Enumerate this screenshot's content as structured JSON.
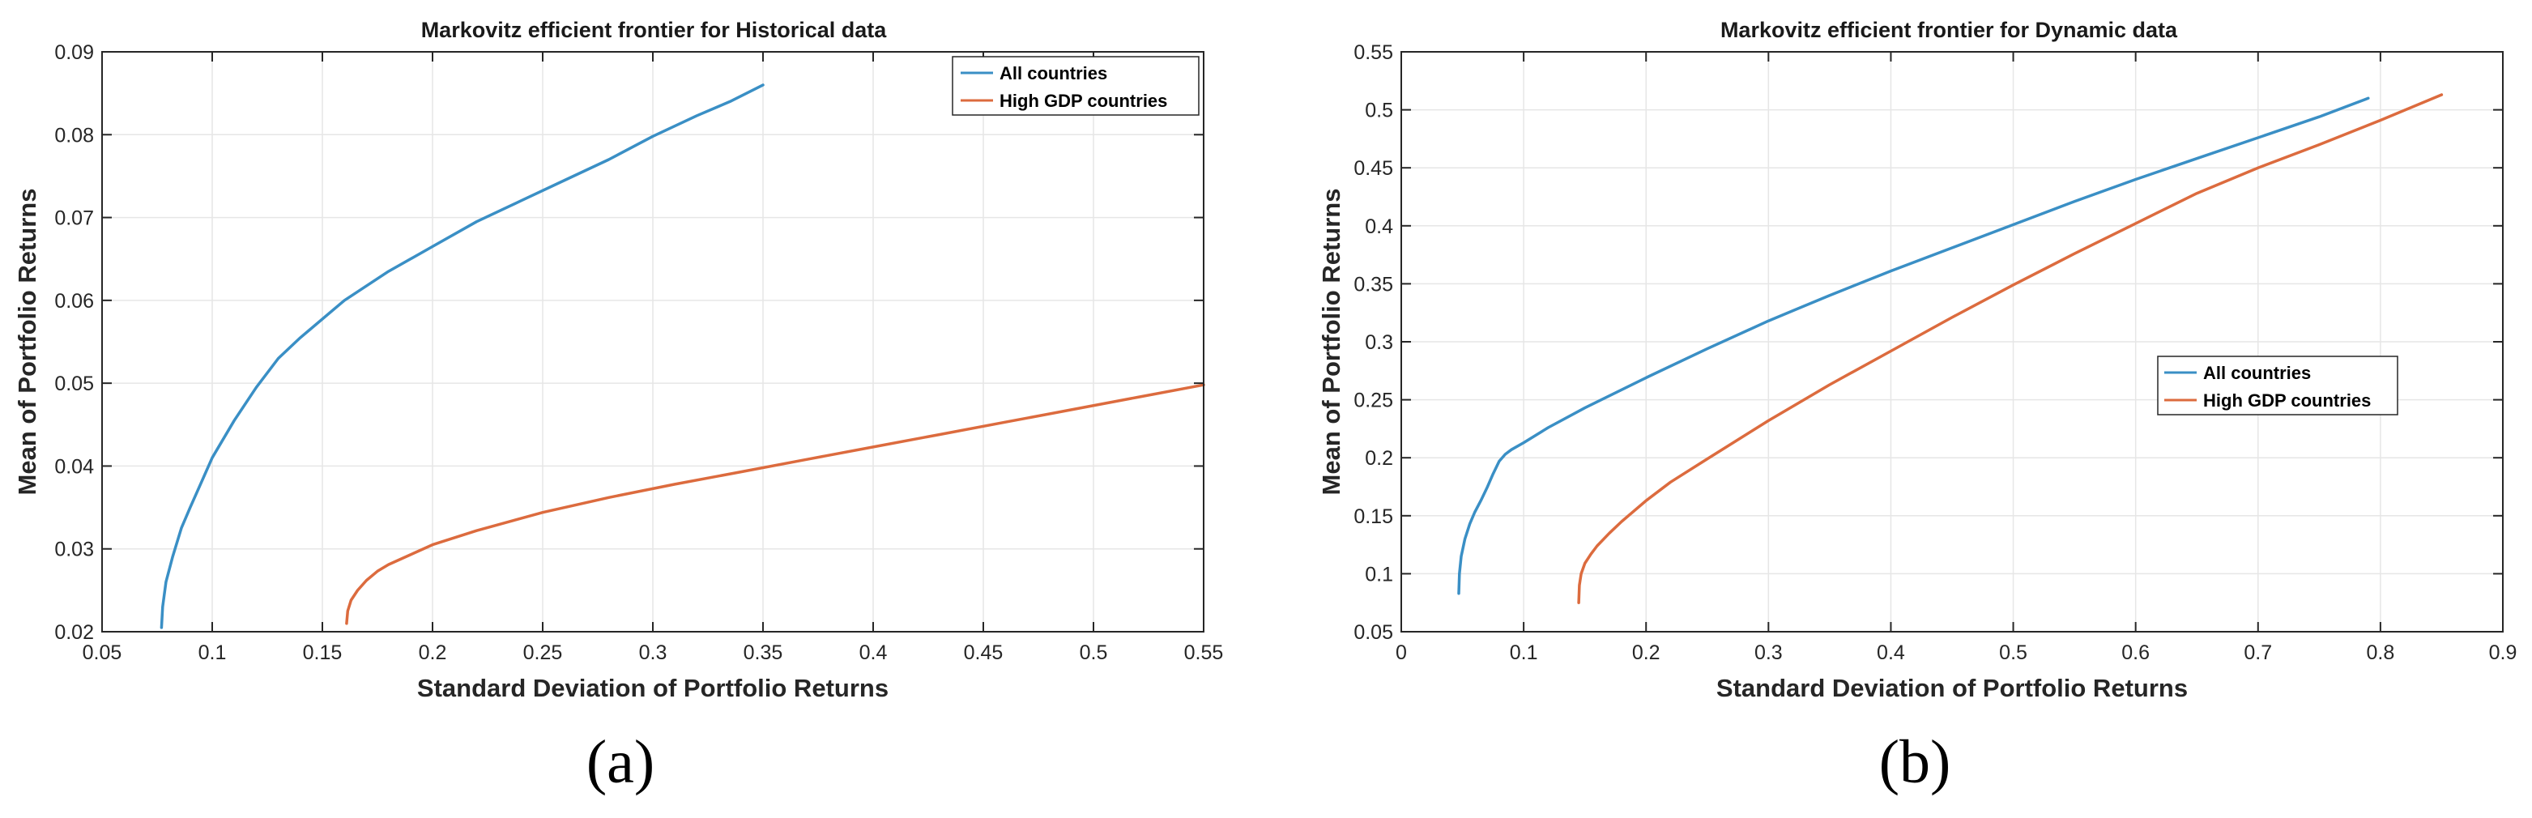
{
  "colors": {
    "all_countries": "#3a8fc5",
    "high_gdp": "#dc6b3e",
    "grid": "#e6e6e6",
    "axes": "#262626"
  },
  "chart_data": [
    {
      "type": "line",
      "panel_label": "(a)",
      "title": "Markovitz efficient frontier for Historical data",
      "xlabel": "Standard Deviation of Portfolio Returns",
      "ylabel": "Mean of Portfolio Returns",
      "xlim": [
        0.05,
        0.55
      ],
      "ylim": [
        0.02,
        0.09
      ],
      "xticks": [
        0.05,
        0.1,
        0.15,
        0.2,
        0.25,
        0.3,
        0.35,
        0.4,
        0.45,
        0.5,
        0.55
      ],
      "xtick_labels": [
        "0.05",
        "0.1",
        "0.15",
        "0.2",
        "0.25",
        "0.3",
        "0.35",
        "0.4",
        "0.45",
        "0.5",
        "0.55"
      ],
      "yticks": [
        0.02,
        0.03,
        0.04,
        0.05,
        0.06,
        0.07,
        0.08,
        0.09
      ],
      "ytick_labels": [
        "0.02",
        "0.03",
        "0.04",
        "0.05",
        "0.06",
        "0.07",
        "0.08",
        "0.09"
      ],
      "grid": true,
      "legend": "top-right",
      "series": [
        {
          "name": "All countries",
          "color": "#3a8fc5",
          "x": [
            0.077,
            0.0775,
            0.079,
            0.082,
            0.086,
            0.09,
            0.095,
            0.1,
            0.11,
            0.12,
            0.13,
            0.14,
            0.16,
            0.18,
            0.2,
            0.22,
            0.24,
            0.26,
            0.28,
            0.3,
            0.32,
            0.335,
            0.35
          ],
          "y": [
            0.0205,
            0.023,
            0.026,
            0.029,
            0.0325,
            0.035,
            0.038,
            0.041,
            0.0455,
            0.0495,
            0.053,
            0.0555,
            0.06,
            0.0635,
            0.0665,
            0.0695,
            0.072,
            0.0745,
            0.077,
            0.0798,
            0.0823,
            0.084,
            0.086
          ]
        },
        {
          "name": "High GDP countries",
          "color": "#dc6b3e",
          "x": [
            0.161,
            0.1615,
            0.163,
            0.166,
            0.17,
            0.175,
            0.18,
            0.19,
            0.2,
            0.22,
            0.25,
            0.28,
            0.31,
            0.34,
            0.37,
            0.4,
            0.43,
            0.46,
            0.49,
            0.52,
            0.55
          ],
          "y": [
            0.021,
            0.0225,
            0.0238,
            0.025,
            0.0262,
            0.0273,
            0.0281,
            0.0293,
            0.0305,
            0.0322,
            0.0344,
            0.0362,
            0.0378,
            0.0393,
            0.0408,
            0.0423,
            0.0438,
            0.0453,
            0.0468,
            0.0483,
            0.0498
          ]
        }
      ]
    },
    {
      "type": "line",
      "panel_label": "(b)",
      "title": "Markovitz efficient frontier for Dynamic data",
      "xlabel": "Standard Deviation of Portfolio Returns",
      "ylabel": "Mean of Portfolio Returns",
      "xlim": [
        0,
        0.9
      ],
      "ylim": [
        0.05,
        0.55
      ],
      "xticks": [
        0,
        0.1,
        0.2,
        0.3,
        0.4,
        0.5,
        0.6,
        0.7,
        0.8,
        0.9
      ],
      "xtick_labels": [
        "0",
        "0.1",
        "0.2",
        "0.3",
        "0.4",
        "0.5",
        "0.6",
        "0.7",
        "0.8",
        "0.9"
      ],
      "yticks": [
        0.05,
        0.1,
        0.15,
        0.2,
        0.25,
        0.3,
        0.35,
        0.4,
        0.45,
        0.5,
        0.55
      ],
      "ytick_labels": [
        "0.05",
        "0.1",
        "0.15",
        "0.2",
        "0.25",
        "0.3",
        "0.35",
        "0.4",
        "0.45",
        "0.5",
        "0.55"
      ],
      "grid": true,
      "legend": "center-right",
      "series": [
        {
          "name": "All countries",
          "color": "#3a8fc5",
          "x": [
            0.047,
            0.0475,
            0.049,
            0.052,
            0.056,
            0.06,
            0.065,
            0.07,
            0.075,
            0.08,
            0.085,
            0.09,
            0.1,
            0.12,
            0.15,
            0.2,
            0.25,
            0.3,
            0.35,
            0.4,
            0.45,
            0.5,
            0.55,
            0.6,
            0.65,
            0.7,
            0.75,
            0.79
          ],
          "y": [
            0.083,
            0.1,
            0.115,
            0.13,
            0.143,
            0.153,
            0.163,
            0.174,
            0.186,
            0.197,
            0.203,
            0.207,
            0.213,
            0.226,
            0.243,
            0.269,
            0.294,
            0.318,
            0.34,
            0.361,
            0.381,
            0.401,
            0.421,
            0.44,
            0.458,
            0.476,
            0.494,
            0.51
          ]
        },
        {
          "name": "High GDP countries",
          "color": "#dc6b3e",
          "x": [
            0.145,
            0.1455,
            0.147,
            0.15,
            0.155,
            0.16,
            0.17,
            0.18,
            0.2,
            0.22,
            0.25,
            0.3,
            0.35,
            0.4,
            0.45,
            0.5,
            0.55,
            0.6,
            0.65,
            0.7,
            0.75,
            0.8,
            0.85
          ],
          "y": [
            0.075,
            0.09,
            0.1,
            0.109,
            0.117,
            0.124,
            0.135,
            0.145,
            0.163,
            0.179,
            0.199,
            0.232,
            0.263,
            0.292,
            0.321,
            0.349,
            0.376,
            0.402,
            0.428,
            0.45,
            0.47,
            0.491,
            0.513
          ]
        }
      ]
    }
  ]
}
